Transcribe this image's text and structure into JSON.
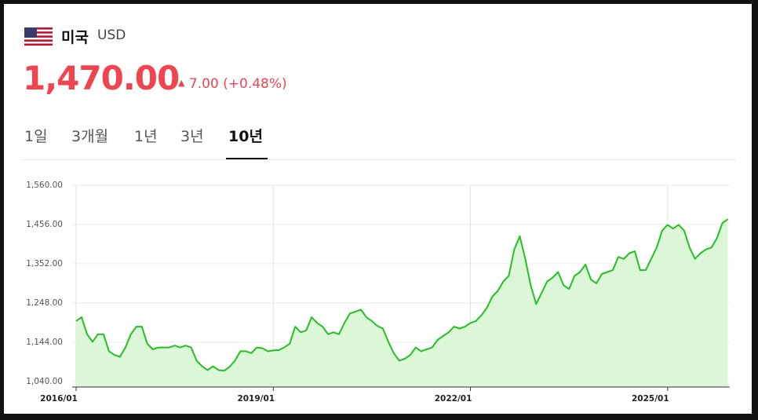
{
  "header": {
    "country": "미국",
    "currency": "USD",
    "price": "1,470.00",
    "change": "7.00",
    "change_pct": "(+0.48%)"
  },
  "tabs": {
    "items": [
      "1일",
      "3개월",
      "1년",
      "3년",
      "10년"
    ],
    "selected": 4
  },
  "chart_data": {
    "type": "line",
    "color": "#22c122",
    "fill_color": "#dcf6d8",
    "grid": true,
    "x": [
      "2016/01",
      "2016/02",
      "2016/03",
      "2016/04",
      "2016/05",
      "2016/06",
      "2016/07",
      "2016/08",
      "2016/09",
      "2016/10",
      "2016/11",
      "2016/12",
      "2017/01",
      "2017/02",
      "2017/03",
      "2017/04",
      "2017/05",
      "2017/06",
      "2017/07",
      "2017/08",
      "2017/09",
      "2017/10",
      "2017/11",
      "2017/12",
      "2018/01",
      "2018/02",
      "2018/03",
      "2018/04",
      "2018/05",
      "2018/06",
      "2018/07",
      "2018/08",
      "2018/09",
      "2018/10",
      "2018/11",
      "2018/12",
      "2019/01",
      "2019/02",
      "2019/03",
      "2019/04",
      "2019/05",
      "2019/06",
      "2019/07",
      "2019/08",
      "2019/09",
      "2019/10",
      "2019/11",
      "2019/12",
      "2020/01",
      "2020/02",
      "2020/03",
      "2020/04",
      "2020/05",
      "2020/06",
      "2020/07",
      "2020/08",
      "2020/09",
      "2020/10",
      "2020/11",
      "2020/12",
      "2021/01",
      "2021/02",
      "2021/03",
      "2021/04",
      "2021/05",
      "2021/06",
      "2021/07",
      "2021/08",
      "2021/09",
      "2021/10",
      "2021/11",
      "2021/12",
      "2022/01",
      "2022/02",
      "2022/03",
      "2022/04",
      "2022/05",
      "2022/06",
      "2022/07",
      "2022/08",
      "2022/09",
      "2022/10",
      "2022/11",
      "2022/12",
      "2023/01",
      "2023/02",
      "2023/03",
      "2023/04",
      "2023/05",
      "2023/06",
      "2023/07",
      "2023/08",
      "2023/09",
      "2023/10",
      "2023/11",
      "2023/12",
      "2024/01",
      "2024/02",
      "2024/03",
      "2024/04",
      "2024/05",
      "2024/06",
      "2024/07",
      "2024/08",
      "2024/09",
      "2024/10",
      "2024/11",
      "2024/12",
      "2025/01",
      "2025/02",
      "2025/03",
      "2025/04",
      "2025/05",
      "2025/06",
      "2025/07",
      "2025/08",
      "2025/09",
      "2025/10",
      "2025/11",
      "2025/12"
    ],
    "values": [
      1200,
      1210,
      1165,
      1145,
      1165,
      1165,
      1120,
      1110,
      1105,
      1130,
      1165,
      1185,
      1185,
      1140,
      1125,
      1130,
      1130,
      1130,
      1135,
      1130,
      1135,
      1130,
      1095,
      1080,
      1070,
      1080,
      1070,
      1068,
      1078,
      1095,
      1120,
      1120,
      1115,
      1130,
      1128,
      1120,
      1122,
      1123,
      1130,
      1140,
      1185,
      1170,
      1175,
      1210,
      1195,
      1185,
      1165,
      1170,
      1165,
      1195,
      1220,
      1225,
      1230,
      1210,
      1200,
      1187,
      1180,
      1145,
      1115,
      1095,
      1100,
      1110,
      1130,
      1120,
      1125,
      1130,
      1150,
      1160,
      1170,
      1185,
      1180,
      1185,
      1195,
      1200,
      1215,
      1235,
      1265,
      1280,
      1305,
      1320,
      1390,
      1425,
      1365,
      1295,
      1245,
      1275,
      1305,
      1315,
      1330,
      1295,
      1285,
      1320,
      1330,
      1350,
      1310,
      1300,
      1325,
      1330,
      1335,
      1370,
      1365,
      1380,
      1385,
      1335,
      1335,
      1365,
      1395,
      1440,
      1455,
      1445,
      1455,
      1440,
      1395,
      1365,
      1380,
      1390,
      1395,
      1420,
      1460,
      1470
    ],
    "ylim": [
      1025,
      1560
    ],
    "yticks": [
      {
        "value": 1040,
        "label": "1,040.00"
      },
      {
        "value": 1144,
        "label": "1,144.00"
      },
      {
        "value": 1248,
        "label": "1,248.00"
      },
      {
        "value": 1352,
        "label": "1,352.00"
      },
      {
        "value": 1456,
        "label": "1,456.00"
      },
      {
        "value": 1560,
        "label": "1,560.00"
      }
    ],
    "xticks": [
      "2016/01",
      "2019/01",
      "2022/01",
      "2025/01"
    ]
  }
}
